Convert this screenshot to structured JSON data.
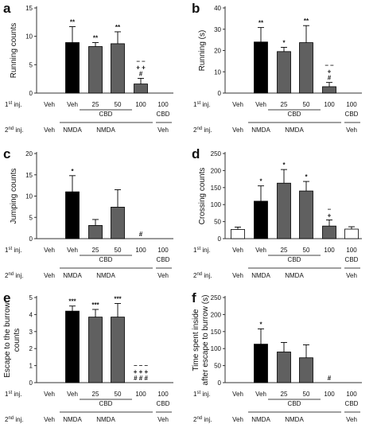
{
  "colors": {
    "black": "#000000",
    "dark_gray": "#606060",
    "white": "#ffffff",
    "axis": "#333333"
  },
  "row_labels": {
    "inj1": "1",
    "inj1_sup": "st",
    "inj2": "2",
    "inj2_sup": "nd",
    "inj_suffix": " inj.",
    "inj1_values": [
      "Veh",
      "Veh",
      "25",
      "50",
      "100",
      "100"
    ],
    "cbd_group": "CBD",
    "cbd_single": "CBD",
    "inj2_values": [
      "Veh",
      "NMDA",
      "NMDA",
      "Veh"
    ]
  },
  "chart_data": [
    {
      "type": "bar",
      "panel": "a",
      "ylabel": "Running counts",
      "ylim": [
        0,
        15
      ],
      "yticks": [
        0,
        5,
        10,
        15
      ],
      "values": [
        0,
        8.9,
        8.2,
        8.7,
        1.6,
        0
      ],
      "errors": [
        0,
        2.8,
        0.7,
        2.1,
        1.0,
        0
      ],
      "annotations": [
        "",
        "**",
        "**",
        "**",
        "– –\n+ +\n#",
        ""
      ]
    },
    {
      "type": "bar",
      "panel": "b",
      "ylabel": "Running (s)",
      "ylim": [
        0,
        40
      ],
      "yticks": [
        0,
        10,
        20,
        30,
        40
      ],
      "values": [
        0,
        24.0,
        19.5,
        23.7,
        3.0,
        0
      ],
      "errors": [
        0,
        6.8,
        2.0,
        8.0,
        2.0,
        0
      ],
      "annotations": [
        "",
        "**",
        "*",
        "**",
        "– –\n+\n#",
        ""
      ]
    },
    {
      "type": "bar",
      "panel": "c",
      "ylabel": "Jumping counts",
      "ylim": [
        0,
        20
      ],
      "yticks": [
        0,
        5,
        10,
        15,
        20
      ],
      "values": [
        0,
        11.0,
        3.1,
        7.4,
        0,
        0
      ],
      "errors": [
        0,
        3.8,
        1.4,
        4.1,
        0,
        0
      ],
      "annotations": [
        "",
        "*",
        "",
        "",
        "#",
        ""
      ]
    },
    {
      "type": "bar",
      "panel": "d",
      "ylabel": "Crossing counts",
      "ylim": [
        0,
        250
      ],
      "yticks": [
        0,
        50,
        100,
        150,
        200,
        250
      ],
      "values": [
        27,
        110,
        163,
        140,
        37,
        28
      ],
      "errors": [
        7,
        45,
        40,
        28,
        18,
        7
      ],
      "annotations": [
        "",
        "*",
        "*",
        "*",
        "–\n+",
        ""
      ]
    },
    {
      "type": "bar",
      "panel": "e",
      "ylabel": "Escape to the burrow\ncounts",
      "ylim": [
        0,
        5
      ],
      "yticks": [
        0,
        1,
        2,
        3,
        4,
        5
      ],
      "values": [
        0,
        4.2,
        3.85,
        3.85,
        0,
        0
      ],
      "errors": [
        0,
        0.3,
        0.45,
        0.8,
        0,
        0
      ],
      "annotations": [
        "",
        "***",
        "***",
        "***",
        "– – –\n+ + +\n# # #",
        ""
      ]
    },
    {
      "type": "bar",
      "panel": "f",
      "ylabel": "Time spent inside\nafter escape to burrow (s)",
      "ylim": [
        0,
        250
      ],
      "yticks": [
        0,
        50,
        100,
        150,
        200,
        250
      ],
      "values": [
        0,
        113,
        90,
        73,
        0,
        0
      ],
      "errors": [
        0,
        45,
        28,
        38,
        0,
        0
      ],
      "annotations": [
        "",
        "*",
        "",
        "",
        "#",
        ""
      ]
    }
  ]
}
